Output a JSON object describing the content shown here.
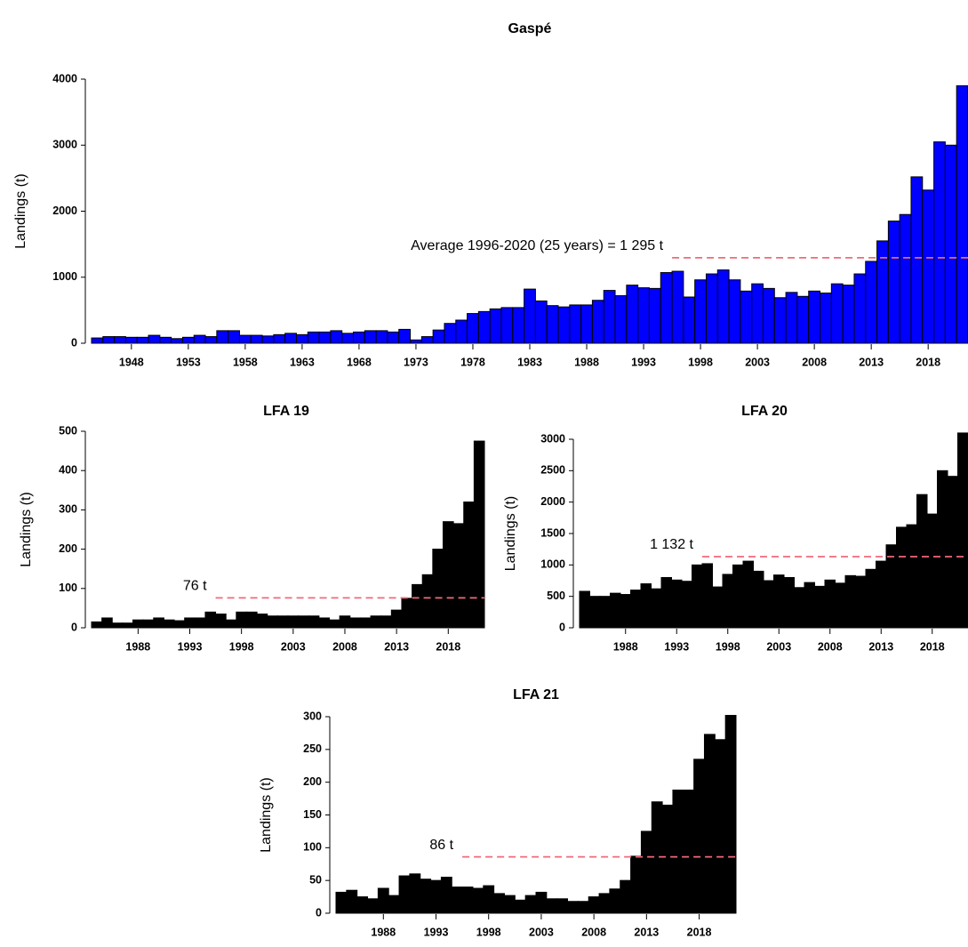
{
  "chart_data": [
    {
      "type": "bar",
      "title": "Gaspé",
      "ylabel": "Landings (t)",
      "color": "#0000ff",
      "x": [
        1945,
        1946,
        1947,
        1948,
        1949,
        1950,
        1951,
        1952,
        1953,
        1954,
        1955,
        1956,
        1957,
        1958,
        1959,
        1960,
        1961,
        1962,
        1963,
        1964,
        1965,
        1966,
        1967,
        1968,
        1969,
        1970,
        1971,
        1972,
        1973,
        1974,
        1975,
        1976,
        1977,
        1978,
        1979,
        1980,
        1981,
        1982,
        1983,
        1984,
        1985,
        1986,
        1987,
        1988,
        1989,
        1990,
        1991,
        1992,
        1993,
        1994,
        1995,
        1996,
        1997,
        1998,
        1999,
        2000,
        2001,
        2002,
        2003,
        2004,
        2005,
        2006,
        2007,
        2008,
        2009,
        2010,
        2011,
        2012,
        2013,
        2014,
        2015,
        2016,
        2017,
        2018,
        2019,
        2020,
        2021
      ],
      "values": [
        80,
        100,
        100,
        90,
        90,
        120,
        90,
        70,
        90,
        120,
        100,
        190,
        190,
        120,
        120,
        110,
        130,
        150,
        130,
        170,
        170,
        190,
        150,
        170,
        190,
        190,
        170,
        210,
        50,
        100,
        200,
        300,
        350,
        450,
        480,
        520,
        540,
        540,
        820,
        640,
        570,
        550,
        580,
        580,
        650,
        800,
        720,
        880,
        840,
        830,
        1070,
        1090,
        700,
        960,
        1050,
        1110,
        960,
        790,
        900,
        830,
        690,
        770,
        710,
        790,
        760,
        900,
        880,
        1050,
        1240,
        1550,
        1850,
        1950,
        2520,
        2320,
        3050,
        3000,
        3900
      ],
      "xlim": [
        1944.5,
        2021.5
      ],
      "ylim": [
        0,
        4000
      ],
      "xticks": [
        1948,
        1953,
        1958,
        1963,
        1968,
        1973,
        1978,
        1983,
        1988,
        1993,
        1998,
        2003,
        2008,
        2013,
        2018
      ],
      "yticks": [
        0,
        1000,
        2000,
        3000,
        4000
      ],
      "average": {
        "value": 1295,
        "start": 1996,
        "label": "Average  1996-2020 (25 years) = 1 295 t"
      }
    },
    {
      "type": "bar",
      "title": "LFA 19",
      "ylabel": "Landings (t)",
      "color": "#000000",
      "x": [
        1984,
        1985,
        1986,
        1987,
        1988,
        1989,
        1990,
        1991,
        1992,
        1993,
        1994,
        1995,
        1996,
        1997,
        1998,
        1999,
        2000,
        2001,
        2002,
        2003,
        2004,
        2005,
        2006,
        2007,
        2008,
        2009,
        2010,
        2011,
        2012,
        2013,
        2014,
        2015,
        2016,
        2017,
        2018,
        2019,
        2020,
        2021
      ],
      "values": [
        15,
        25,
        12,
        12,
        20,
        20,
        25,
        20,
        18,
        25,
        25,
        40,
        35,
        20,
        40,
        40,
        35,
        30,
        30,
        30,
        30,
        30,
        25,
        20,
        30,
        25,
        25,
        30,
        30,
        45,
        75,
        110,
        135,
        200,
        270,
        265,
        320,
        475
      ],
      "xlim": [
        1983.5,
        2021.5
      ],
      "ylim": [
        0,
        500
      ],
      "xticks": [
        1988,
        1993,
        1998,
        2003,
        2008,
        2013,
        2018
      ],
      "yticks": [
        0,
        100,
        200,
        300,
        400,
        500
      ],
      "average": {
        "value": 76,
        "start": 1996,
        "label": "76 t"
      }
    },
    {
      "type": "bar",
      "title": "LFA 20",
      "ylabel": "Landings (t)",
      "color": "#000000",
      "x": [
        1984,
        1985,
        1986,
        1987,
        1988,
        1989,
        1990,
        1991,
        1992,
        1993,
        1994,
        1995,
        1996,
        1997,
        1998,
        1999,
        2000,
        2001,
        2002,
        2003,
        2004,
        2005,
        2006,
        2007,
        2008,
        2009,
        2010,
        2011,
        2012,
        2013,
        2014,
        2015,
        2016,
        2017,
        2018,
        2019,
        2020,
        2021
      ],
      "values": [
        580,
        500,
        500,
        550,
        530,
        600,
        700,
        620,
        800,
        760,
        740,
        1000,
        1020,
        650,
        850,
        1000,
        1060,
        900,
        750,
        840,
        800,
        640,
        720,
        660,
        760,
        710,
        830,
        820,
        930,
        1060,
        1320,
        1600,
        1640,
        2120,
        1810,
        2500,
        2410,
        3100
      ],
      "xlim": [
        1983.5,
        2021.5
      ],
      "ylim": [
        0,
        3000
      ],
      "xticks": [
        1988,
        1993,
        1998,
        2003,
        2008,
        2013,
        2018
      ],
      "yticks": [
        0,
        500,
        1000,
        1500,
        2000,
        2500,
        3000
      ],
      "average": {
        "value": 1132,
        "start": 1996,
        "label": "1 132 t"
      }
    },
    {
      "type": "bar",
      "title": "LFA 21",
      "ylabel": "Landings (t)",
      "color": "#000000",
      "x": [
        1984,
        1985,
        1986,
        1987,
        1988,
        1989,
        1990,
        1991,
        1992,
        1993,
        1994,
        1995,
        1996,
        1997,
        1998,
        1999,
        2000,
        2001,
        2002,
        2003,
        2004,
        2005,
        2006,
        2007,
        2008,
        2009,
        2010,
        2011,
        2012,
        2013,
        2014,
        2015,
        2016,
        2017,
        2018,
        2019,
        2020,
        2021
      ],
      "values": [
        32,
        35,
        25,
        22,
        38,
        27,
        57,
        60,
        52,
        50,
        55,
        40,
        40,
        38,
        42,
        30,
        27,
        20,
        27,
        32,
        22,
        22,
        18,
        18,
        25,
        30,
        37,
        50,
        87,
        125,
        170,
        165,
        188,
        188,
        235,
        273,
        265,
        302
      ],
      "xlim": [
        1983.5,
        2021.5
      ],
      "ylim": [
        0,
        300
      ],
      "xticks": [
        1988,
        1993,
        1998,
        2003,
        2008,
        2013,
        2018
      ],
      "yticks": [
        0,
        50,
        100,
        150,
        200,
        250,
        300
      ],
      "average": {
        "value": 86,
        "start": 1996,
        "label": "86 t"
      }
    }
  ]
}
